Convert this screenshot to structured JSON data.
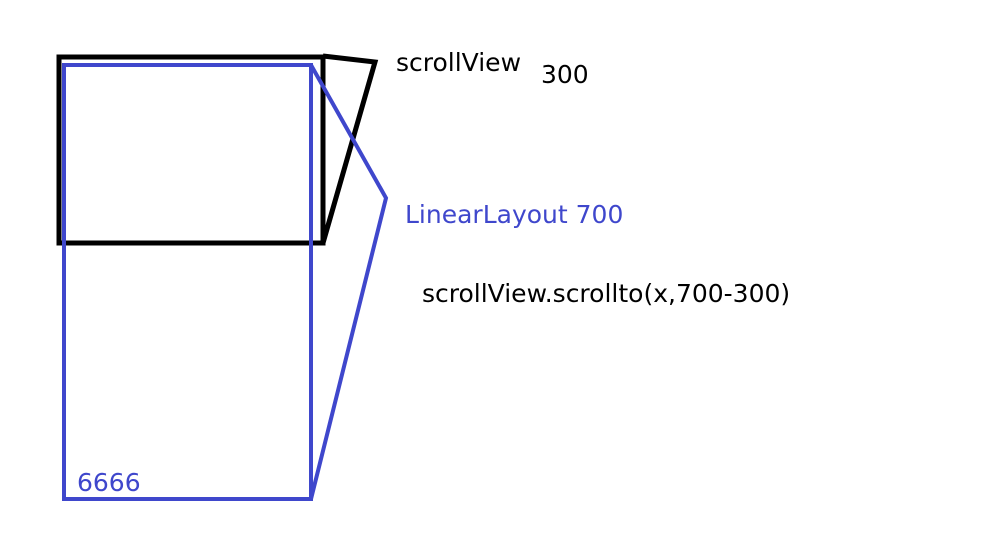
{
  "colors": {
    "scrollview_stroke": "#000000",
    "linearlayout_stroke": "#3f47cc",
    "background": "#ffffff"
  },
  "labels": {
    "scrollview": "scrollView",
    "scrollview_height": "300",
    "linearlayout": "LinearLayout 700",
    "scroll_call": "scrollView.scrollto(x,700-300)",
    "content_text": "6666"
  }
}
